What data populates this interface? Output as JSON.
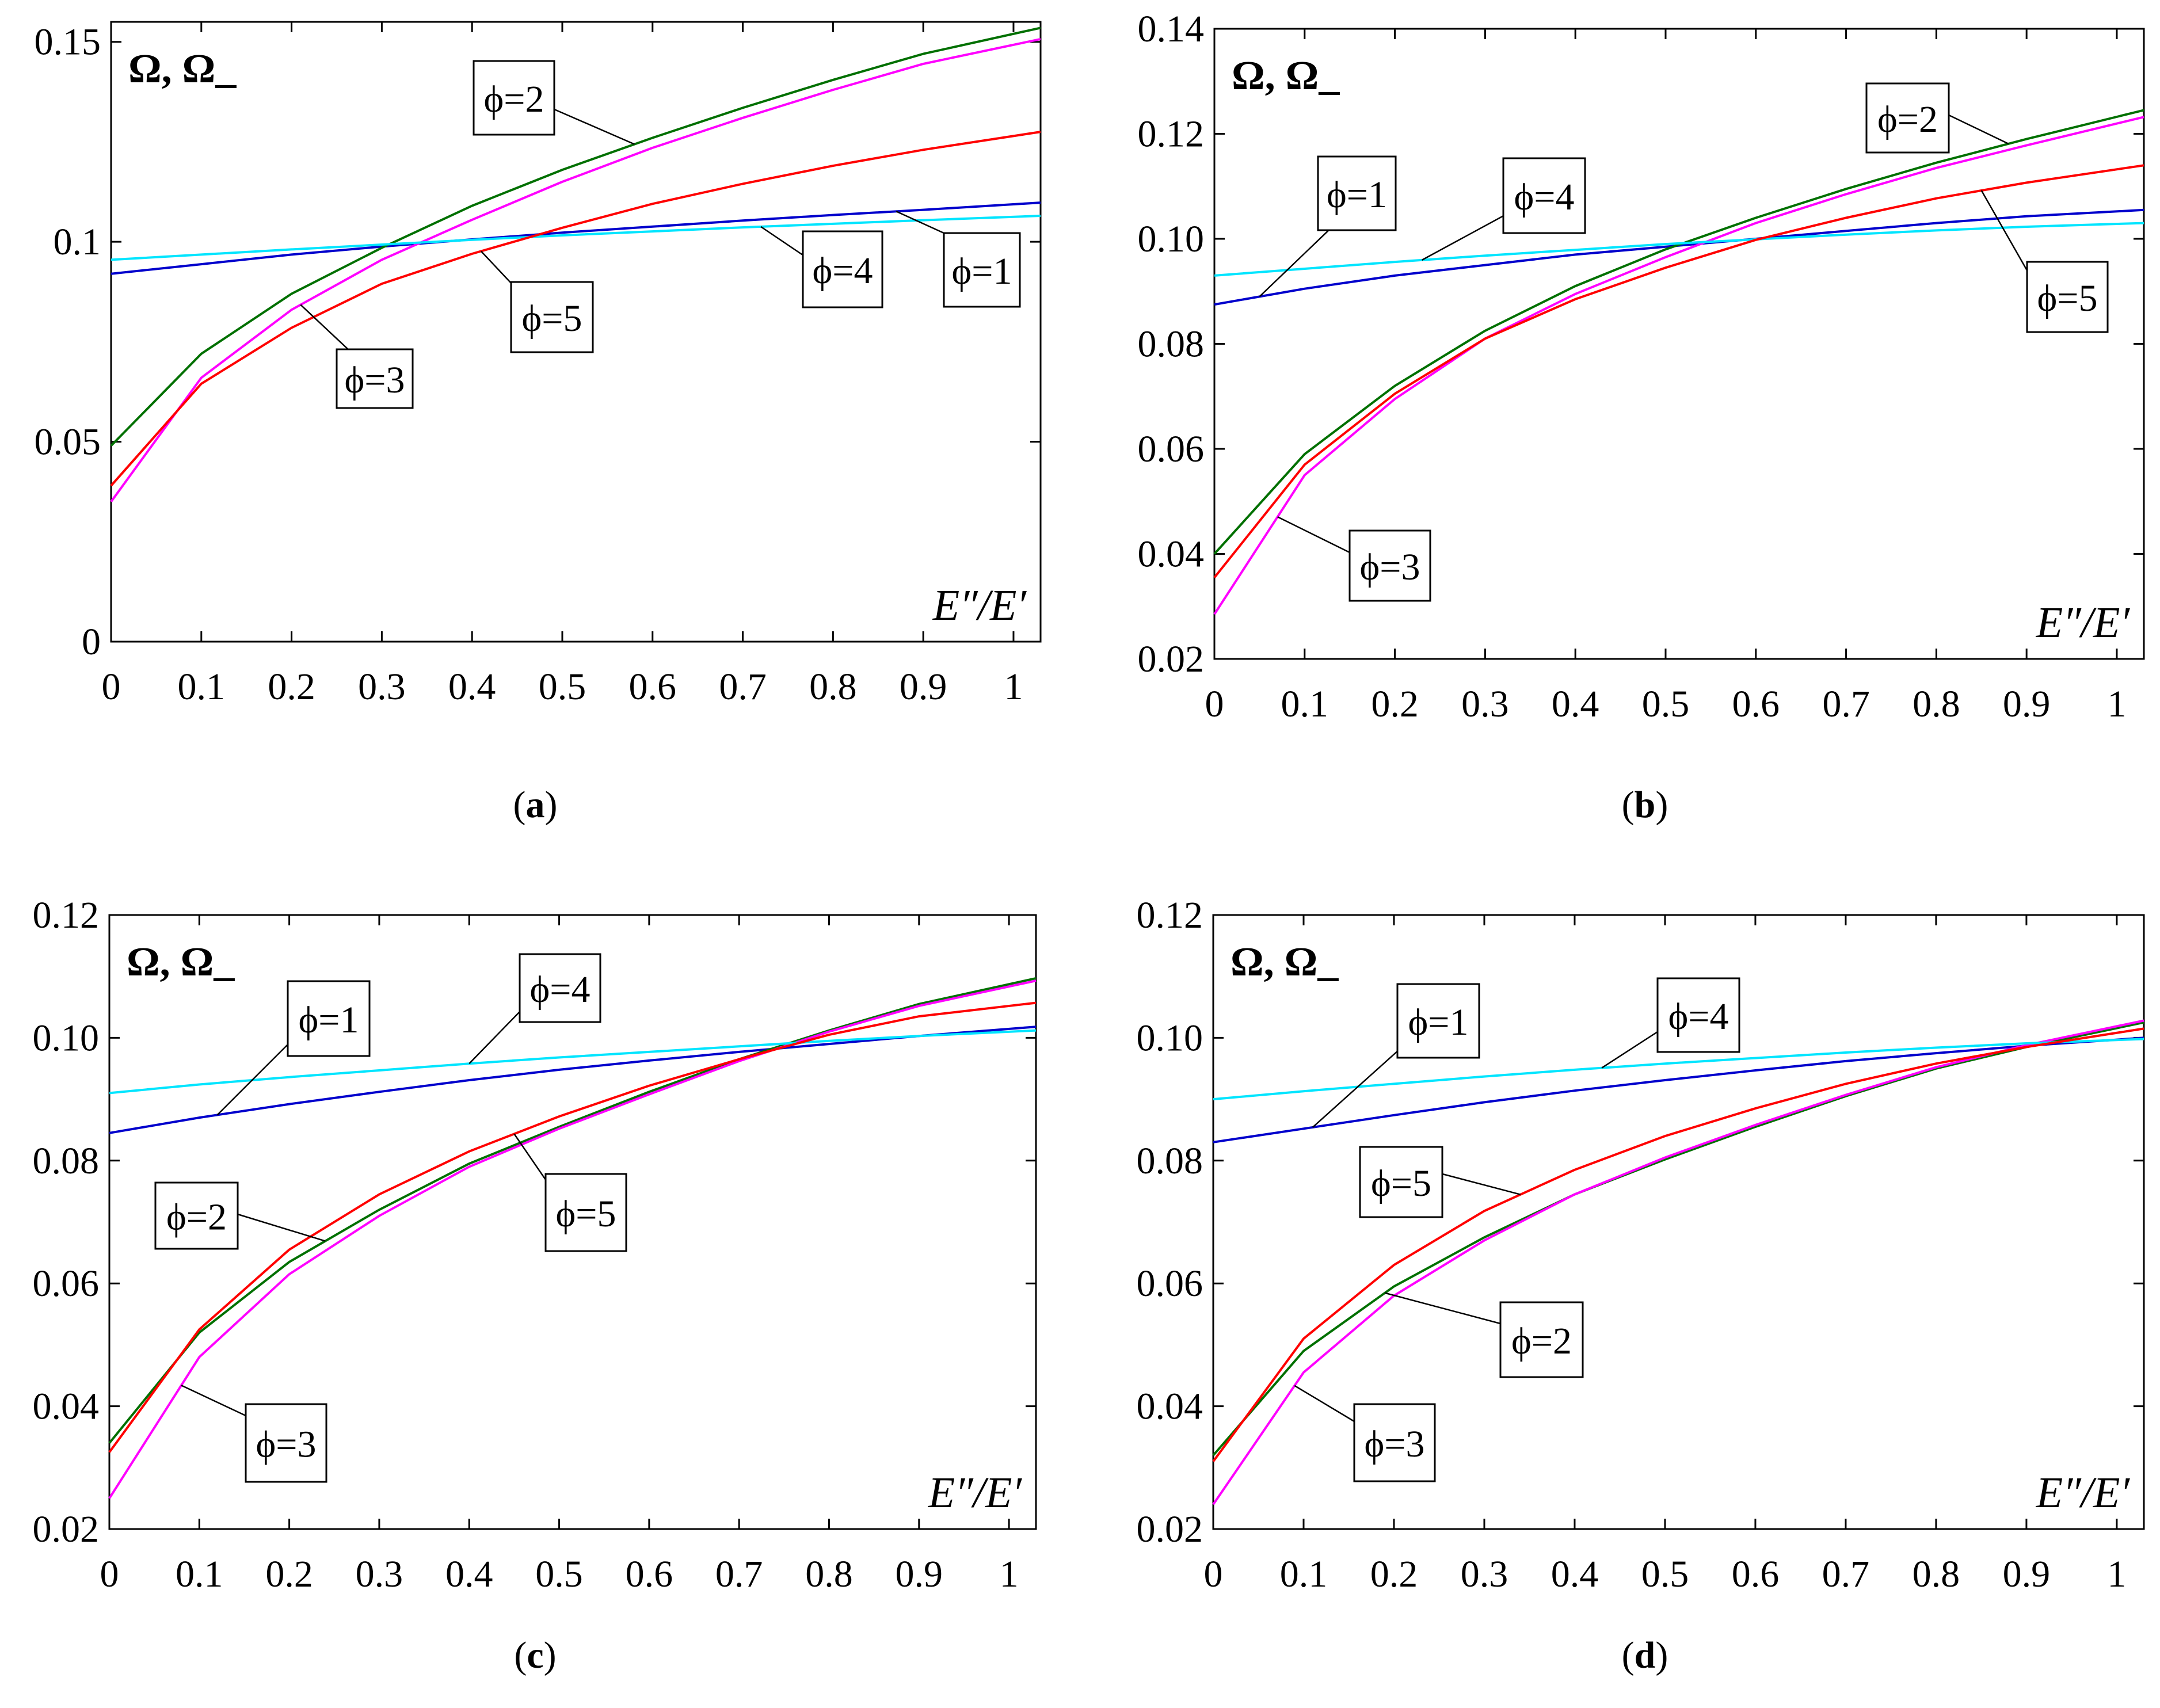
{
  "colors": {
    "phi1": "#0000cc",
    "phi2": "#007000",
    "phi3": "#ff00ff",
    "phi4": "#00e5ff",
    "phi5": "#ff0000"
  },
  "chart_data": [
    {
      "type": "line",
      "panel": "a",
      "caption": "a",
      "ylabel": "Ω, Ω_",
      "xlabel": "E″/E′",
      "xlim": [
        0,
        1.03
      ],
      "ylim": [
        0,
        0.155
      ],
      "xticks": [
        0,
        0.1,
        0.2,
        0.3,
        0.4,
        0.5,
        0.6,
        0.7,
        0.8,
        0.9,
        1
      ],
      "xtick_labels": [
        "0",
        "0.1",
        "0.2",
        "0.3",
        "0.4",
        "0.5",
        "0.6",
        "0.7",
        "0.8",
        "0.9",
        "1"
      ],
      "yticks": [
        0,
        0.05,
        0.1,
        0.15
      ],
      "ytick_labels": [
        "0",
        "0.05",
        "0.1",
        "0.15"
      ],
      "x": [
        0,
        0.1,
        0.2,
        0.3,
        0.4,
        0.5,
        0.6,
        0.7,
        0.8,
        0.9,
        1.03
      ],
      "series": [
        {
          "name": "ϕ=1",
          "key": "phi1",
          "values": [
            0.092,
            0.0944,
            0.0968,
            0.0988,
            0.1006,
            0.1023,
            0.1038,
            0.1053,
            0.1067,
            0.108,
            0.1098
          ]
        },
        {
          "name": "ϕ=2",
          "key": "phi2",
          "values": [
            0.049,
            0.072,
            0.087,
            0.0985,
            0.109,
            0.118,
            0.126,
            0.1335,
            0.1405,
            0.147,
            0.1535
          ]
        },
        {
          "name": "ϕ=3",
          "key": "phi3",
          "values": [
            0.035,
            0.066,
            0.083,
            0.0955,
            0.1055,
            0.115,
            0.1235,
            0.131,
            0.138,
            0.1445,
            0.1507
          ]
        },
        {
          "name": "ϕ=4",
          "key": "phi4",
          "values": [
            0.0955,
            0.0968,
            0.0981,
            0.0993,
            0.1005,
            0.1016,
            0.1026,
            0.1036,
            0.1045,
            0.1054,
            0.1065
          ]
        },
        {
          "name": "ϕ=5",
          "key": "phi5",
          "values": [
            0.039,
            0.0645,
            0.0785,
            0.0895,
            0.097,
            0.1035,
            0.1095,
            0.1145,
            0.119,
            0.123,
            0.1275
          ]
        }
      ],
      "labels": [
        "ϕ=1",
        "ϕ=2",
        "ϕ=3",
        "ϕ=4",
        "ϕ=5"
      ]
    },
    {
      "type": "line",
      "panel": "b",
      "caption": "b",
      "ylabel": "Ω, Ω_",
      "xlabel": "E″/E′",
      "xlim": [
        0,
        1.03
      ],
      "ylim": [
        0.02,
        0.14
      ],
      "xticks": [
        0,
        0.1,
        0.2,
        0.3,
        0.4,
        0.5,
        0.6,
        0.7,
        0.8,
        0.9,
        1
      ],
      "xtick_labels": [
        "0",
        "0.1",
        "0.2",
        "0.3",
        "0.4",
        "0.5",
        "0.6",
        "0.7",
        "0.8",
        "0.9",
        "1"
      ],
      "yticks": [
        0.02,
        0.04,
        0.06,
        0.08,
        0.1,
        0.12,
        0.14
      ],
      "ytick_labels": [
        "0.02",
        "0.04",
        "0.06",
        "0.08",
        "0.10",
        "0.12",
        "0.14"
      ],
      "x": [
        0,
        0.1,
        0.2,
        0.3,
        0.4,
        0.5,
        0.6,
        0.7,
        0.8,
        0.9,
        1.03
      ],
      "series": [
        {
          "name": "ϕ=1",
          "key": "phi1",
          "values": [
            0.0875,
            0.0905,
            0.093,
            0.095,
            0.097,
            0.0985,
            0.1,
            0.1015,
            0.103,
            0.1043,
            0.1055
          ]
        },
        {
          "name": "ϕ=2",
          "key": "phi2",
          "values": [
            0.04,
            0.059,
            0.072,
            0.0825,
            0.091,
            0.098,
            0.104,
            0.1095,
            0.1145,
            0.119,
            0.1245
          ]
        },
        {
          "name": "ϕ=3",
          "key": "phi3",
          "values": [
            0.0285,
            0.055,
            0.0695,
            0.081,
            0.0895,
            0.0965,
            0.103,
            0.1085,
            0.1135,
            0.1178,
            0.1232
          ]
        },
        {
          "name": "ϕ=4",
          "key": "phi4",
          "values": [
            0.093,
            0.0943,
            0.0956,
            0.0968,
            0.0979,
            0.099,
            0.0999,
            0.1008,
            0.1016,
            0.1023,
            0.103
          ]
        },
        {
          "name": "ϕ=5",
          "key": "phi5",
          "values": [
            0.0355,
            0.057,
            0.0705,
            0.081,
            0.0885,
            0.0945,
            0.0998,
            0.104,
            0.1077,
            0.1107,
            0.114
          ]
        }
      ],
      "labels": [
        "ϕ=1",
        "ϕ=2",
        "ϕ=3",
        "ϕ=4",
        "ϕ=5"
      ]
    },
    {
      "type": "line",
      "panel": "c",
      "caption": "c",
      "ylabel": "Ω, Ω_",
      "xlabel": "E″/E′",
      "xlim": [
        0,
        1.03
      ],
      "ylim": [
        0.02,
        0.12
      ],
      "xticks": [
        0,
        0.1,
        0.2,
        0.3,
        0.4,
        0.5,
        0.6,
        0.7,
        0.8,
        0.9,
        1
      ],
      "xtick_labels": [
        "0",
        "0.1",
        "0.2",
        "0.3",
        "0.4",
        "0.5",
        "0.6",
        "0.7",
        "0.8",
        "0.9",
        "1"
      ],
      "yticks": [
        0.02,
        0.04,
        0.06,
        0.08,
        0.1,
        0.12
      ],
      "ytick_labels": [
        "0.02",
        "0.04",
        "0.06",
        "0.08",
        "0.10",
        "0.12"
      ],
      "x": [
        0,
        0.1,
        0.2,
        0.3,
        0.4,
        0.5,
        0.6,
        0.7,
        0.8,
        0.9,
        1.03
      ],
      "series": [
        {
          "name": "ϕ=1",
          "key": "phi1",
          "values": [
            0.0845,
            0.087,
            0.0892,
            0.0912,
            0.0931,
            0.0948,
            0.0963,
            0.0977,
            0.099,
            0.1003,
            0.1018
          ]
        },
        {
          "name": "ϕ=2",
          "key": "phi2",
          "values": [
            0.034,
            0.052,
            0.0635,
            0.072,
            0.0795,
            0.0855,
            0.0912,
            0.0965,
            0.1012,
            0.1055,
            0.1097
          ]
        },
        {
          "name": "ϕ=3",
          "key": "phi3",
          "values": [
            0.025,
            0.048,
            0.0615,
            0.071,
            0.079,
            0.0852,
            0.0908,
            0.0962,
            0.101,
            0.1052,
            0.1093
          ]
        },
        {
          "name": "ϕ=4",
          "key": "phi4",
          "values": [
            0.091,
            0.0924,
            0.0936,
            0.0947,
            0.0958,
            0.0968,
            0.0977,
            0.0986,
            0.0995,
            0.1003,
            0.1012
          ]
        },
        {
          "name": "ϕ=5",
          "key": "phi5",
          "values": [
            0.0325,
            0.0525,
            0.0655,
            0.0745,
            0.0815,
            0.0872,
            0.0922,
            0.0965,
            0.1005,
            0.1035,
            0.1057
          ]
        }
      ],
      "labels": [
        "ϕ=1",
        "ϕ=2",
        "ϕ=3",
        "ϕ=4",
        "ϕ=5"
      ]
    },
    {
      "type": "line",
      "panel": "d",
      "caption": "d",
      "ylabel": "Ω, Ω_",
      "xlabel": "E″/E′",
      "xlim": [
        0,
        1.03
      ],
      "ylim": [
        0.02,
        0.12
      ],
      "xticks": [
        0,
        0.1,
        0.2,
        0.3,
        0.4,
        0.5,
        0.6,
        0.7,
        0.8,
        0.9,
        1
      ],
      "xtick_labels": [
        "0",
        "0.1",
        "0.2",
        "0.3",
        "0.4",
        "0.5",
        "0.6",
        "0.7",
        "0.8",
        "0.9",
        "1"
      ],
      "yticks": [
        0.02,
        0.04,
        0.06,
        0.08,
        0.1,
        0.12
      ],
      "ytick_labels": [
        "0.02",
        "0.04",
        "0.06",
        "0.08",
        "0.10",
        "0.12"
      ],
      "x": [
        0,
        0.1,
        0.2,
        0.3,
        0.4,
        0.5,
        0.6,
        0.7,
        0.8,
        0.9,
        1.03
      ],
      "series": [
        {
          "name": "ϕ=1",
          "key": "phi1",
          "values": [
            0.083,
            0.0852,
            0.0874,
            0.0895,
            0.0914,
            0.0931,
            0.0947,
            0.0962,
            0.0975,
            0.0987,
            0.1
          ]
        },
        {
          "name": "ϕ=2",
          "key": "phi2",
          "values": [
            0.032,
            0.049,
            0.0595,
            0.0675,
            0.0745,
            0.0802,
            0.0855,
            0.0905,
            0.095,
            0.0985,
            0.1025
          ]
        },
        {
          "name": "ϕ=3",
          "key": "phi3",
          "values": [
            0.024,
            0.0455,
            0.058,
            0.067,
            0.0745,
            0.0805,
            0.0858,
            0.0907,
            0.0952,
            0.0988,
            0.1028
          ]
        },
        {
          "name": "ϕ=4",
          "key": "phi4",
          "values": [
            0.09,
            0.0913,
            0.0925,
            0.0937,
            0.0948,
            0.0958,
            0.0967,
            0.0976,
            0.0984,
            0.0991,
            0.0998
          ]
        },
        {
          "name": "ϕ=5",
          "key": "phi5",
          "values": [
            0.031,
            0.051,
            0.063,
            0.0718,
            0.0785,
            0.084,
            0.0885,
            0.0925,
            0.0958,
            0.0985,
            0.1015
          ]
        }
      ],
      "labels": [
        "ϕ=1",
        "ϕ=2",
        "ϕ=3",
        "ϕ=4",
        "ϕ=5"
      ]
    }
  ]
}
